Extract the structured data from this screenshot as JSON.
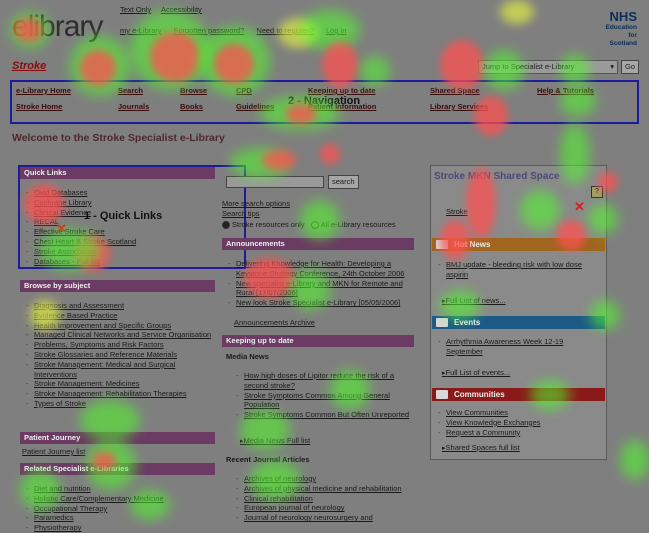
{
  "topbar": {
    "text_only": "Text Only",
    "accessibility": "Accessibility"
  },
  "logo": {
    "e": "e",
    "rest": "library"
  },
  "nhs": {
    "name": "NHS",
    "line1": "Education",
    "line2": "for",
    "line3": "Scotland"
  },
  "usernav": [
    "my e-Library",
    "Forgotten password?",
    "Need to register?",
    "Log in"
  ],
  "page_title": "Stroke",
  "jump": {
    "selected": "Jump to Specialist e-Library",
    "go": "Go"
  },
  "nav": {
    "row1": [
      "e-Library Home",
      "Search",
      "Browse",
      "CPD",
      "Keeping up to date",
      "Shared Space",
      "Help & Tutorials"
    ],
    "row2": [
      "Stroke Home",
      "Journals",
      "Books",
      "Guidelines",
      "Patient Information",
      "Library Services"
    ],
    "annotation": "2 - Navigation"
  },
  "welcome": "Welcome to the Stroke Specialist e-Library",
  "quick_links": {
    "title": "Quick Links",
    "annotation": "1 - Quick Links",
    "items": [
      "Ovid Databases",
      "Cochrane Library",
      "Clinical Evidence",
      "RECAL",
      "Effective Stroke Care",
      "Chest Heart & Stroke Scotland",
      "Stroke Association",
      "Databases - Full list"
    ]
  },
  "browse": {
    "title": "Browse by subject",
    "items": [
      "Diagnosis and Assessment",
      "Evidence Based Practice",
      "Health Improvement and Specific Groups",
      "Managed Clinical Networks and Service Organisation",
      "Problems, Symptoms and Risk Factors",
      "Stroke Glossaries and Reference Materials",
      "Stroke Management: Medical and Surgical Interventions",
      "Stroke Management: Medicines",
      "Stroke Management: Rehabilitation Therapies",
      "Types of Stroke"
    ]
  },
  "patient_journey": {
    "title": "Patient Journey",
    "link": "Patient Journey list"
  },
  "related": {
    "title": "Related Specialist e-Libraries",
    "items": [
      "Diet and nutrition",
      "Holistic Care/Complementary Medicine",
      "Occupational Therapy",
      "Paramedics",
      "Physiotherapy"
    ]
  },
  "search": {
    "button": "search",
    "more": "More search options",
    "tips": "Search tips",
    "opt1": "Stroke resources only",
    "opt2": "All e-Library resources"
  },
  "announcements": {
    "title": "Announcements",
    "items": [
      "Delivering Knowledge for Health: Developing a Keystone Strategy Conference, 24th October 2006",
      "New specialist e-Library and MKN for Remote and Rural [17/07/2006]",
      "New look Stroke Specialist e-Library [05/05/2006]"
    ],
    "archive": "Announcements Archive"
  },
  "keeping": {
    "title": "Keeping up to date"
  },
  "media": {
    "title": "Media News",
    "items": [
      "How high doses of Lipitor reduce the risk of a second stroke?",
      "Stroke Symptoms Common Among General Population",
      "Stroke Symptoms Common But Often Unreported"
    ],
    "full": "Media News Full list"
  },
  "journals": {
    "title": "Recent Journal Articles",
    "items": [
      "Archives of neurology",
      "Archives of physical medicine and rehabilitation",
      "Clinical rehabilitation",
      "European journal of neurology",
      "Journal of neurology neurosurgery and"
    ]
  },
  "shared": {
    "title": "Stroke MKN Shared Space",
    "help": "?",
    "link": "Stroke",
    "hot_title": "Hot News",
    "hot_items": [
      "BMJ update - bleeding risk with low dose aspirin"
    ],
    "hot_full": "Full List of news...",
    "events_title": "Events",
    "events_items": [
      "Arrhythmia Awareness Week 12-19 September"
    ],
    "events_full": "Full List of events...",
    "comm_title": "Communities",
    "comm_items": [
      "View Communities",
      "View Knowledge Exchanges",
      "Request a Community"
    ],
    "comm_full": "Shared Spaces full list"
  }
}
